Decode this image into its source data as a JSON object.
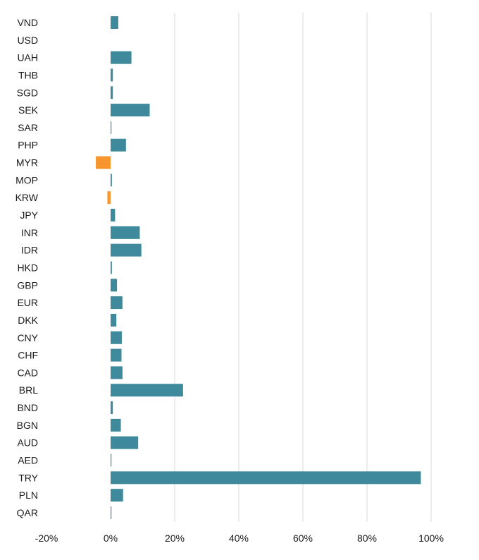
{
  "chart_data": {
    "type": "bar",
    "orientation": "horizontal",
    "categories": [
      "VND",
      "USD",
      "UAH",
      "THB",
      "SGD",
      "SEK",
      "SAR",
      "PHP",
      "MYR",
      "MOP",
      "KRW",
      "JPY",
      "INR",
      "IDR",
      "HKD",
      "GBP",
      "EUR",
      "DKK",
      "CNY",
      "CHF",
      "CAD",
      "BRL",
      "BND",
      "BGN",
      "AUD",
      "AED",
      "TRY",
      "PLN",
      "QAR"
    ],
    "series": [
      {
        "values": [
          2.4,
          0.0,
          6.5,
          0.7,
          0.7,
          12.2,
          0.2,
          4.8,
          -4.6,
          0.4,
          -1.0,
          1.4,
          9.1,
          9.6,
          0.4,
          2.0,
          3.7,
          1.8,
          3.5,
          3.4,
          3.7,
          22.6,
          0.7,
          3.2,
          8.6,
          0.1,
          96.8,
          3.9,
          0.2
        ]
      }
    ],
    "xlim": [
      -20,
      100
    ],
    "x_ticks": [
      -20,
      0,
      20,
      40,
      60,
      80,
      100
    ],
    "x_tick_labels": [
      "-20%",
      "0%",
      "20%",
      "40%",
      "60%",
      "80%",
      "100%"
    ],
    "grid": "vertical",
    "colors": {
      "positive": "#3e8a9c",
      "negative": "#f7962f",
      "grid": "#d9d9d9"
    },
    "title": "",
    "xlabel": "",
    "ylabel": ""
  }
}
